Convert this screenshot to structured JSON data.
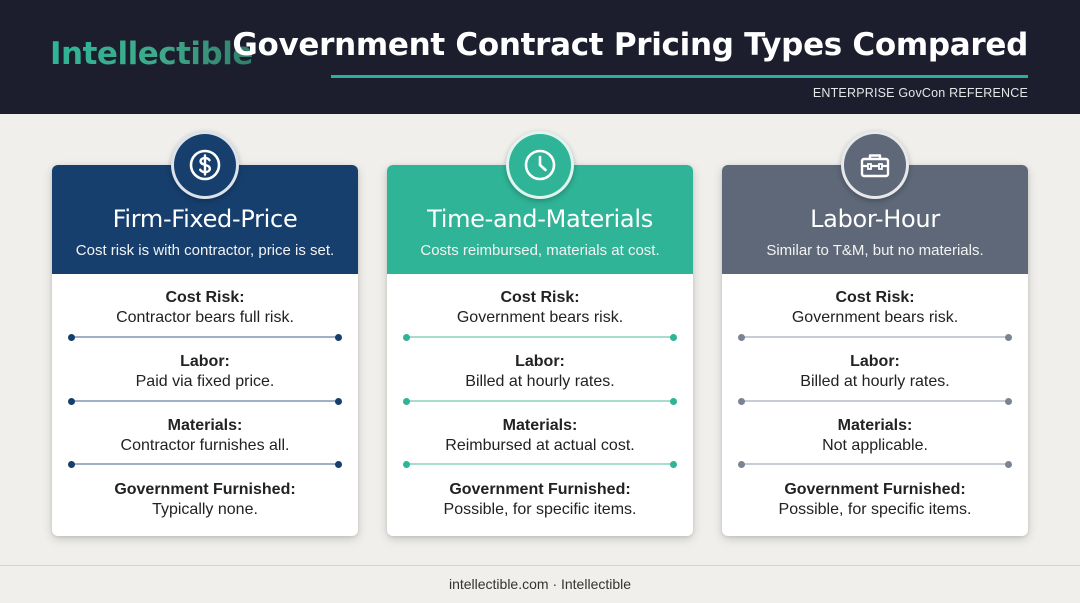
{
  "header": {
    "logo": "Intellectible",
    "title": "Government Contract Pricing Types Compared",
    "subtitle": "ENTERPRISE GovCon REFERENCE"
  },
  "colors": {
    "header_bg": "#1c1e2e",
    "accent": "#2bb199",
    "ffp": "#163f6e",
    "tm": "#2fb497",
    "lh": "#5e6878"
  },
  "cards": [
    {
      "icon": "dollar-icon",
      "name": "Firm-Fixed-Price",
      "tagline": "Cost risk is with contractor, price is set.",
      "rows": [
        {
          "label": "Cost Risk:",
          "value": "Contractor bears full risk."
        },
        {
          "label": "Labor:",
          "value": "Paid via fixed price."
        },
        {
          "label": "Materials:",
          "value": "Contractor furnishes all."
        },
        {
          "label": "Government Furnished:",
          "value": "Typically none."
        }
      ]
    },
    {
      "icon": "clock-icon",
      "name": "Time-and-Materials",
      "tagline": "Costs reimbursed, materials at cost.",
      "rows": [
        {
          "label": "Cost Risk:",
          "value": "Government bears risk."
        },
        {
          "label": "Labor:",
          "value": "Billed at hourly rates."
        },
        {
          "label": "Materials:",
          "value": "Reimbursed at actual cost."
        },
        {
          "label": "Government Furnished:",
          "value": "Possible, for specific items."
        }
      ]
    },
    {
      "icon": "toolbox-icon",
      "name": "Labor-Hour",
      "tagline": "Similar to T&M, but no materials.",
      "rows": [
        {
          "label": "Cost Risk:",
          "value": "Government bears risk."
        },
        {
          "label": "Labor:",
          "value": "Billed at hourly rates."
        },
        {
          "label": "Materials:",
          "value": "Not applicable."
        },
        {
          "label": "Government Furnished:",
          "value": "Possible, for specific items."
        }
      ]
    }
  ],
  "footer": "intellectible.com · Intellectible"
}
